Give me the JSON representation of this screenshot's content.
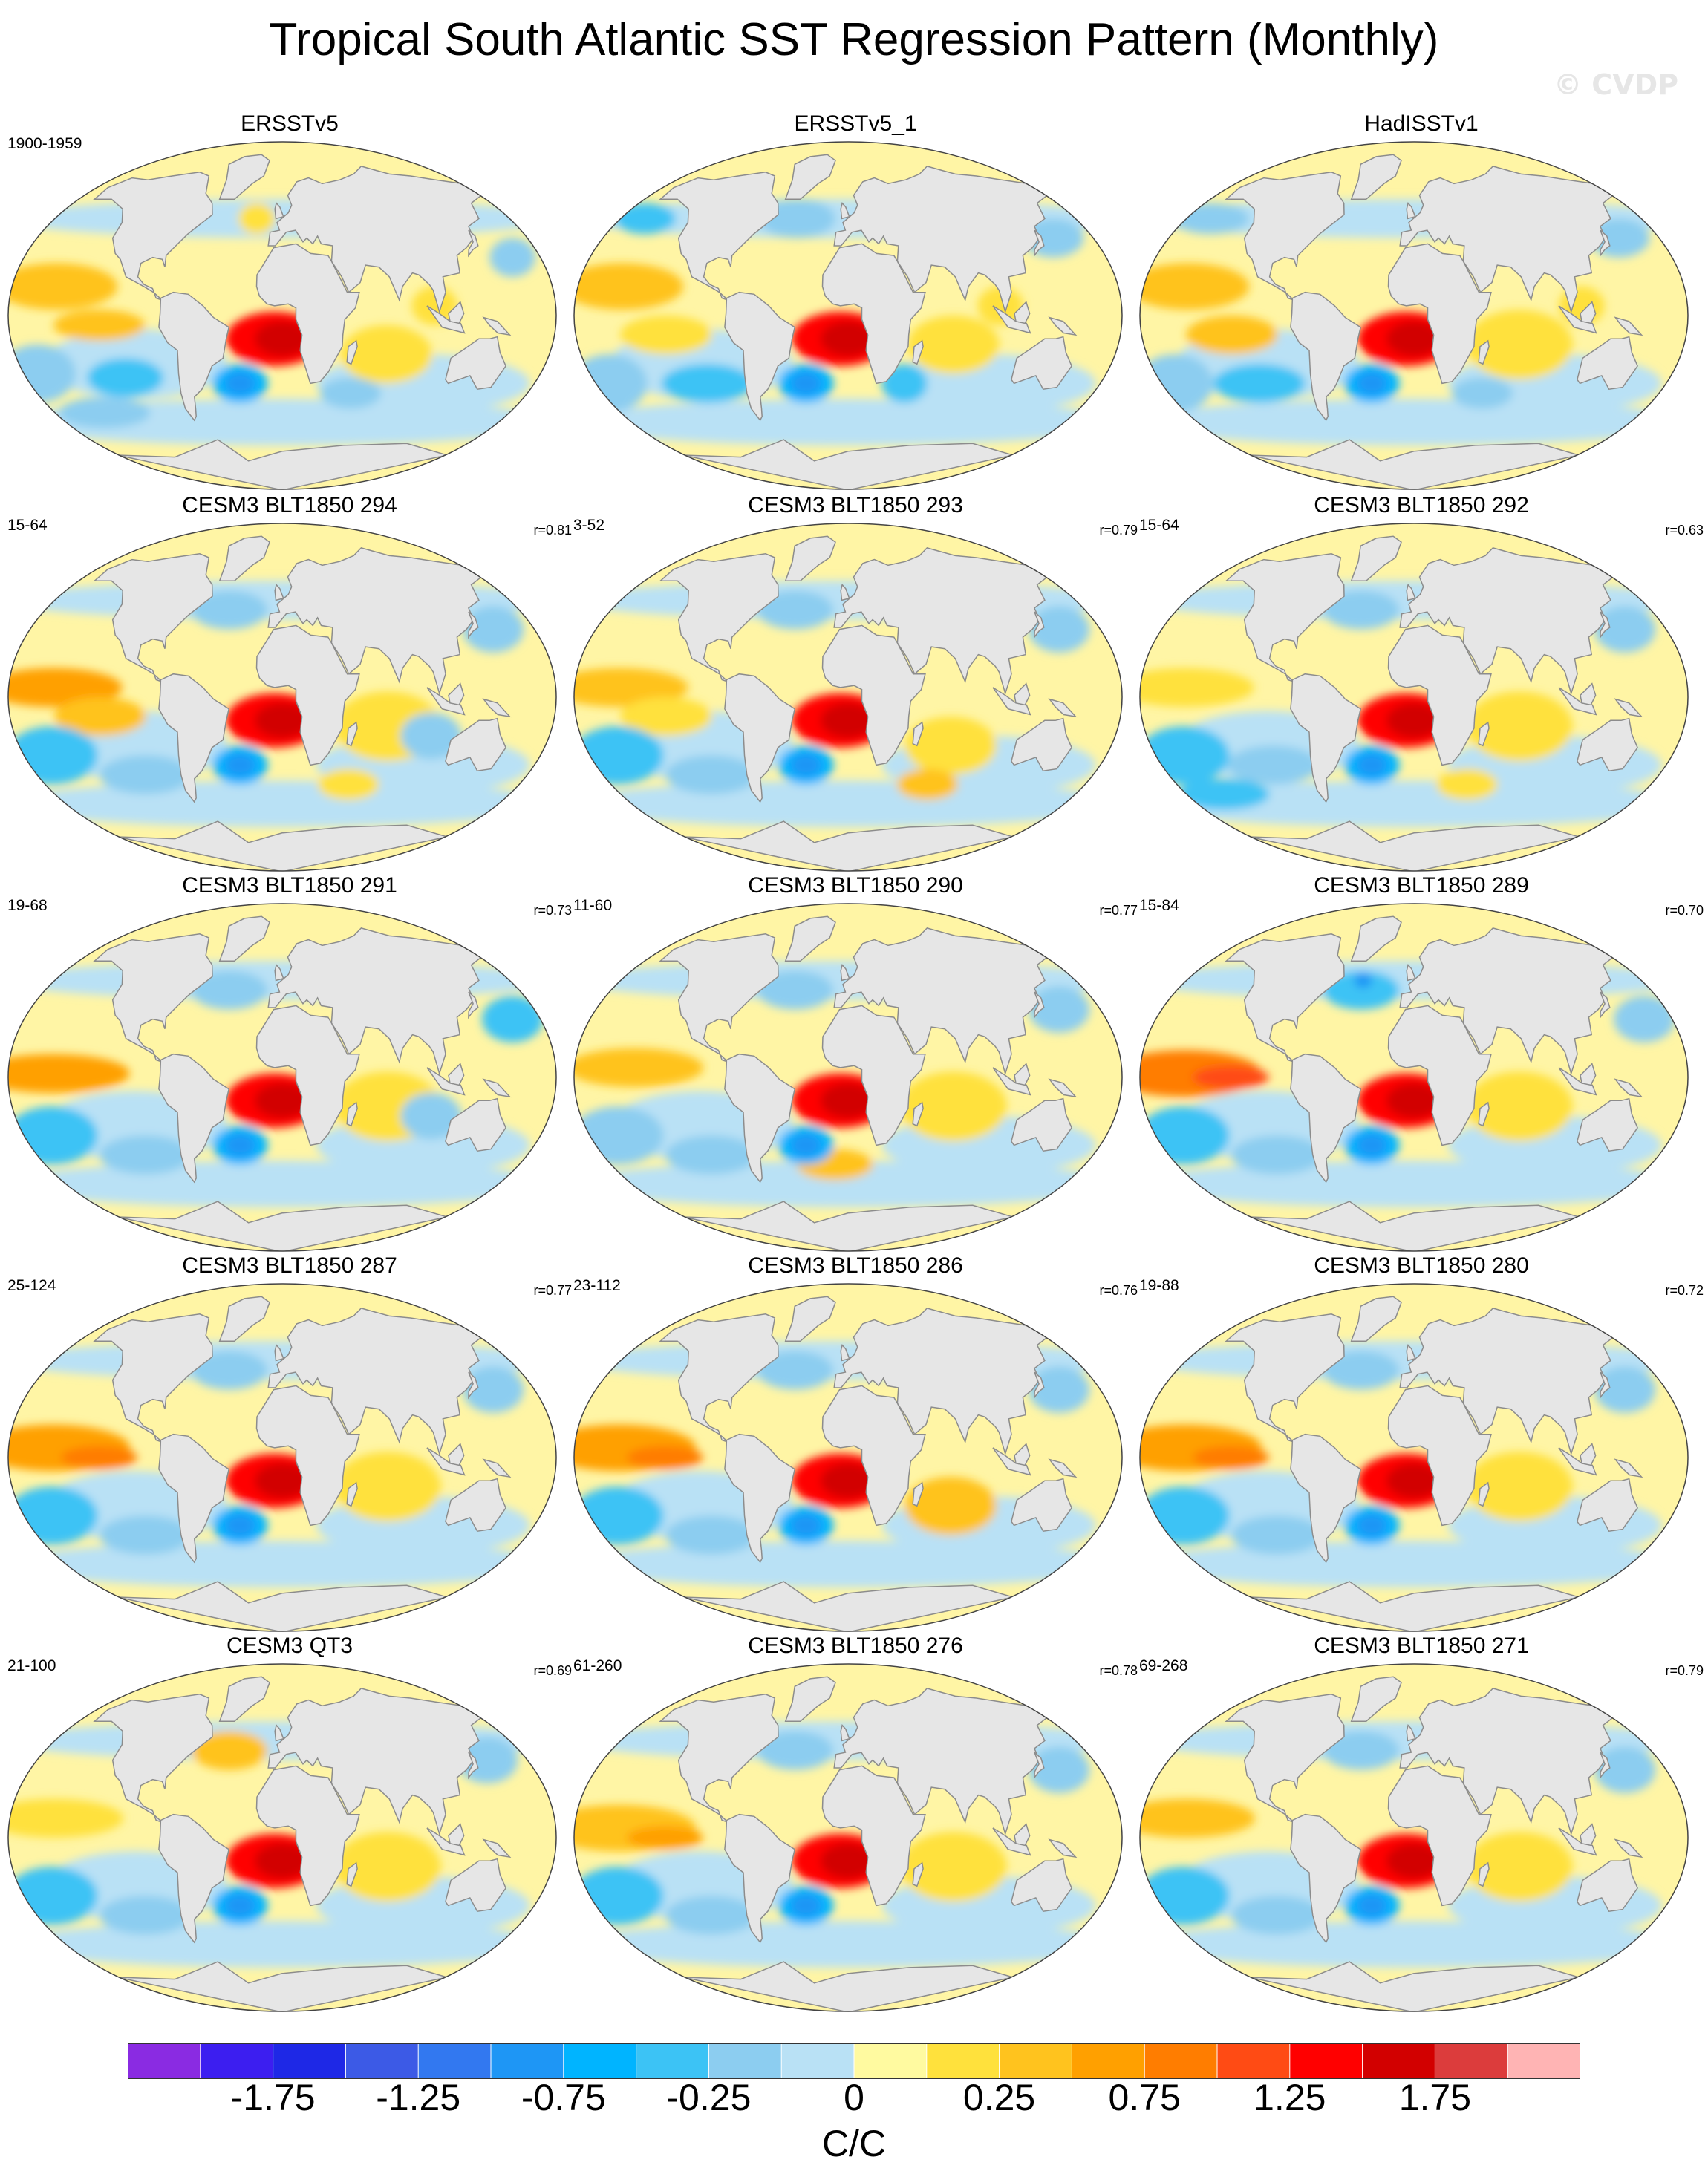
{
  "title": "Tropical South Atlantic SST Regression Pattern (Monthly)",
  "watermark": "© CVDP",
  "panels": [
    {
      "title": "ERSSTv5",
      "years": "1900-1959",
      "r": "",
      "pattern": "obs1"
    },
    {
      "title": "ERSSTv5_1",
      "years": "",
      "r": "",
      "pattern": "obs2"
    },
    {
      "title": "HadISSTv1",
      "years": "",
      "r": "",
      "pattern": "obs3"
    },
    {
      "title": "CESM3 BLT1850 294",
      "years": "15-64",
      "r": "r=0.81",
      "pattern": "m1"
    },
    {
      "title": "CESM3 BLT1850 293",
      "years": "3-52",
      "r": "r=0.79",
      "pattern": "m2"
    },
    {
      "title": "CESM3 BLT1850 292",
      "years": "15-64",
      "r": "r=0.63",
      "pattern": "m3"
    },
    {
      "title": "CESM3 BLT1850 291",
      "years": "19-68",
      "r": "r=0.73",
      "pattern": "m4"
    },
    {
      "title": "CESM3 BLT1850 290",
      "years": "11-60",
      "r": "r=0.77",
      "pattern": "m5"
    },
    {
      "title": "CESM3 BLT1850 289",
      "years": "15-84",
      "r": "r=0.70",
      "pattern": "m6"
    },
    {
      "title": "CESM3 BLT1850 287",
      "years": "25-124",
      "r": "r=0.77",
      "pattern": "m7"
    },
    {
      "title": "CESM3 BLT1850 286",
      "years": "23-112",
      "r": "r=0.76",
      "pattern": "m8"
    },
    {
      "title": "CESM3 BLT1850 280",
      "years": "19-88",
      "r": "r=0.72",
      "pattern": "m9"
    },
    {
      "title": "CESM3 QT3",
      "years": "21-100",
      "r": "r=0.69",
      "pattern": "m10"
    },
    {
      "title": "CESM3 BLT1850 276",
      "years": "61-260",
      "r": "r=0.78",
      "pattern": "m11"
    },
    {
      "title": "CESM3 BLT1850 271",
      "years": "69-268",
      "r": "r=0.79",
      "pattern": "m12"
    }
  ],
  "colorbar": {
    "units": "C/C",
    "labels": [
      "-1.75",
      "-1.25",
      "-0.75",
      "-0.25",
      "0",
      "0.25",
      "0.75",
      "1.25",
      "1.75"
    ],
    "colors": [
      "#8a2be2",
      "#3c1ef0",
      "#1e28e6",
      "#3c5ae6",
      "#3278f0",
      "#1e96f5",
      "#00b4ff",
      "#3cc3f5",
      "#8ccdf0",
      "#b9e1f5",
      "#fffaa0",
      "#ffe13c",
      "#ffc31e",
      "#ffa000",
      "#ff7d00",
      "#ff4b14",
      "#ff0000",
      "#d20000",
      "#dc3c3c",
      "#ffb4b4"
    ]
  },
  "map": {
    "ocean_base": "#fff5a5",
    "land": "#e6e6e6",
    "coast": "#8c8c8c"
  }
}
